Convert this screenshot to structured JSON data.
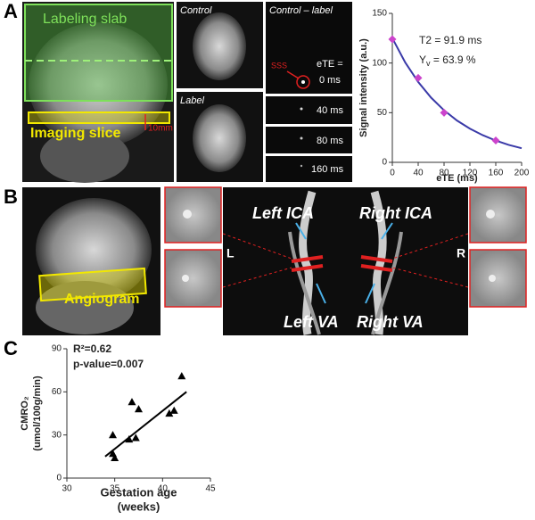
{
  "panel_labels": [
    "A",
    "B",
    "C"
  ],
  "panel_a": {
    "slab_label": "Labeling slab",
    "slice_label": "Imaging slice",
    "distance_label": "10mm",
    "control_label": "Control",
    "label_label": "Label",
    "difference_label": "Control – label",
    "sss_label": "SSS",
    "ete_label": "eTE =",
    "ete_values": [
      "0 ms",
      "40 ms",
      "80 ms",
      "160 ms"
    ]
  },
  "panel_b": {
    "angiogram_label": "Angiogram",
    "vessels": [
      "Left ICA",
      "Right ICA",
      "Left VA",
      "Right VA"
    ],
    "sides": [
      "L",
      "R"
    ]
  },
  "chart_data": [
    {
      "type": "scatter",
      "xlabel": "eTE (ms)",
      "ylabel": "Signal intensity (a.u.)",
      "annotations": [
        {
          "text": "T2 = 91.9 ms"
        },
        {
          "text": "Y",
          "subscript": "v",
          "suffix": " = 63.9 %"
        }
      ],
      "xlim": [
        0,
        200
      ],
      "xticks": [
        0,
        40,
        80,
        120,
        160,
        200
      ],
      "ylim": [
        0,
        150
      ],
      "yticks": [
        0,
        50,
        100,
        150
      ],
      "series": [
        {
          "color": "#3a3aa8",
          "mode": "line",
          "x": [
            0,
            20,
            40,
            60,
            80,
            100,
            120,
            140,
            160,
            180,
            200
          ],
          "values": [
            125,
            100.5,
            80.9,
            65.1,
            52.4,
            42.1,
            33.9,
            27.3,
            21.9,
            17.6,
            14.2
          ]
        },
        {
          "color": "#cc44cc",
          "mode": "markers",
          "marker": "diamond",
          "x": [
            0,
            40,
            80,
            160
          ],
          "values": [
            124,
            85,
            50,
            22
          ]
        }
      ]
    },
    {
      "type": "scatter",
      "xlabel": [
        "Gestation age",
        "(weeks)"
      ],
      "ylabel": [
        "CMRO₂",
        "(umol/100g/min)"
      ],
      "annotations": [
        {
          "text": "R²=0.62"
        },
        {
          "text": "p-value=0.007"
        }
      ],
      "xlim": [
        30,
        45
      ],
      "xticks": [
        30,
        35,
        40,
        45
      ],
      "ylim": [
        0,
        90
      ],
      "yticks": [
        0,
        30,
        60,
        90
      ],
      "series": [
        {
          "color": "#000000",
          "mode": "line",
          "x": [
            34,
            42.5
          ],
          "values": [
            15,
            60
          ]
        },
        {
          "color": "#000000",
          "mode": "markers",
          "marker": "triangle",
          "x": [
            34.8,
            34.8,
            35,
            36.5,
            36.8,
            37.2,
            37.5,
            40.7,
            41.2,
            42
          ],
          "values": [
            30,
            17,
            14,
            27,
            53,
            28,
            48,
            45,
            47,
            71
          ]
        }
      ]
    }
  ]
}
